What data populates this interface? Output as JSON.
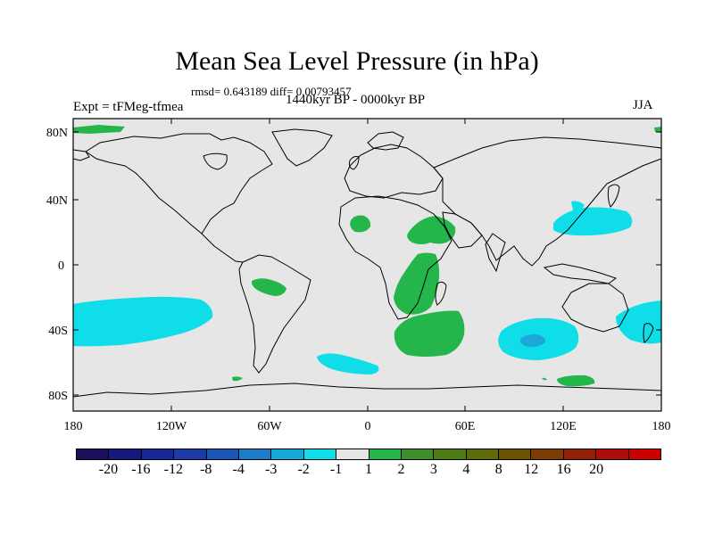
{
  "title": "Mean Sea Level Pressure (in hPa)",
  "stats": "rmsd= 0.643189 diff= 0.00793457",
  "expt": "Expt = tFMeg-tfmea",
  "period": "1440kyr BP - 0000kyr BP",
  "season": "JJA",
  "lat_labels": [
    "80N",
    "40N",
    "0",
    "40S",
    "80S"
  ],
  "lon_labels": [
    "180",
    "120W",
    "60W",
    "0",
    "60E",
    "120E",
    "180"
  ],
  "colorbar": {
    "colors": [
      "#1b0f5e",
      "#16187e",
      "#16289a",
      "#1c3ba8",
      "#1a55b8",
      "#1c7ccc",
      "#16a8d8",
      "#0fdde8",
      "#e6e6e6",
      "#24b64a",
      "#3d8f2e",
      "#4e7c14",
      "#5f6a0a",
      "#6c5404",
      "#7d3c02",
      "#942008",
      "#ad0e0c",
      "#cc0000"
    ],
    "labels": [
      "-20",
      "-16",
      "-12",
      "-8",
      "-4",
      "-3",
      "-2",
      "-1",
      "1",
      "2",
      "3",
      "4",
      "8",
      "12",
      "16",
      "20"
    ]
  },
  "map_colors": {
    "ocean_bg": "#e6e6e6",
    "negative_fill": "#0fdde8",
    "negative_strong": "#1ca8d8",
    "positive_fill": "#24b64a",
    "coast": "#000000"
  }
}
